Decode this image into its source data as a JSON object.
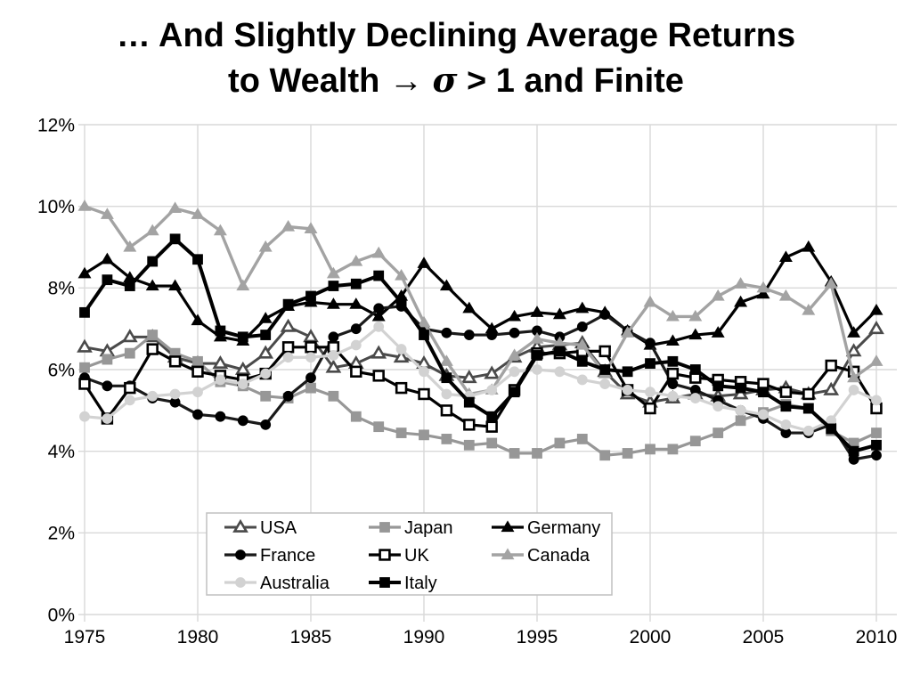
{
  "slide": {
    "title_line1": "… And Slightly Declining Average Returns",
    "title_line2_pre": "to Wealth ",
    "title_line2_arrow": "→",
    "title_line2_mid": " ",
    "title_line2_sigma": "σ",
    "title_line2_post": " > 1 and Finite"
  },
  "chart_data": {
    "type": "line",
    "title": "… And Slightly Declining Average Returns to Wealth → σ > 1 and Finite",
    "xlabel": "",
    "ylabel": "",
    "xlim": [
      1975,
      2010
    ],
    "ylim": [
      0,
      12
    ],
    "grid": true,
    "legend_position": "inside-bottom-left",
    "legend_columns": 3,
    "x_ticks": [
      1975,
      1980,
      1985,
      1990,
      1995,
      2000,
      2005,
      2010
    ],
    "y_ticks": [
      "0%",
      "2%",
      "4%",
      "6%",
      "8%",
      "10%",
      "12%"
    ],
    "y_tick_values": [
      0,
      2,
      4,
      6,
      8,
      10,
      12
    ],
    "x_start_year": 1975,
    "years": [
      1975,
      1976,
      1977,
      1978,
      1979,
      1980,
      1981,
      1982,
      1983,
      1984,
      1985,
      1986,
      1987,
      1988,
      1989,
      1990,
      1991,
      1992,
      1993,
      1994,
      1995,
      1996,
      1997,
      1998,
      1999,
      2000,
      2001,
      2002,
      2003,
      2004,
      2005,
      2006,
      2007,
      2008,
      2009,
      2010
    ],
    "colors": {
      "black": "#000000",
      "dark_gray": "#4a4a4a",
      "medium_gray": "#979797",
      "canada_gray": "#a3a3a3",
      "light_gray": "#d2d2d2",
      "gridline": "#d9d9d9",
      "legend_border": "#c0c0c0"
    },
    "series": [
      {
        "name": "USA",
        "marker": "triangle",
        "open": true,
        "line_color": "#4a4a4a",
        "marker_fill": "#ffffff",
        "marker_stroke": "#4a4a4a",
        "line_width": 3,
        "values": [
          6.55,
          6.45,
          6.8,
          6.8,
          6.3,
          6.15,
          6.15,
          6.0,
          6.4,
          7.05,
          6.8,
          6.05,
          6.15,
          6.4,
          6.3,
          6.15,
          5.85,
          5.8,
          5.9,
          6.3,
          6.55,
          6.6,
          6.65,
          5.95,
          5.4,
          5.2,
          5.3,
          5.4,
          5.35,
          5.4,
          5.5,
          5.55,
          5.4,
          5.5,
          6.45,
          7.0
        ]
      },
      {
        "name": "Japan",
        "marker": "square",
        "open": false,
        "line_color": "#979797",
        "marker_fill": "#979797",
        "marker_stroke": "#979797",
        "line_width": 3.2,
        "values": [
          6.05,
          6.25,
          6.4,
          6.85,
          6.4,
          6.2,
          5.7,
          5.6,
          5.35,
          5.3,
          5.55,
          5.35,
          4.85,
          4.6,
          4.45,
          4.4,
          4.3,
          4.15,
          4.2,
          3.95,
          3.95,
          4.2,
          4.3,
          3.9,
          3.95,
          4.05,
          4.05,
          4.25,
          4.45,
          4.75,
          4.95,
          5.15,
          5.05,
          4.5,
          4.2,
          4.45
        ]
      },
      {
        "name": "Germany",
        "marker": "triangle",
        "open": false,
        "line_color": "#000000",
        "marker_fill": "#000000",
        "marker_stroke": "#000000",
        "line_width": 3.2,
        "values": [
          8.35,
          8.7,
          8.25,
          8.05,
          8.05,
          7.2,
          6.8,
          6.7,
          7.25,
          7.55,
          7.65,
          7.6,
          7.6,
          7.3,
          7.8,
          8.6,
          8.05,
          7.5,
          7.0,
          7.3,
          7.4,
          7.35,
          7.5,
          7.4,
          6.95,
          6.6,
          6.7,
          6.85,
          6.9,
          7.65,
          7.85,
          8.75,
          9.0,
          8.15,
          6.9,
          7.45
        ]
      },
      {
        "name": "France",
        "marker": "circle",
        "open": false,
        "line_color": "#1a1a1a",
        "marker_fill": "#000000",
        "marker_stroke": "#000000",
        "line_width": 3.2,
        "values": [
          5.8,
          5.6,
          5.6,
          5.3,
          5.2,
          4.9,
          4.85,
          4.75,
          4.65,
          5.35,
          5.8,
          6.8,
          7.0,
          7.5,
          7.55,
          7.0,
          6.9,
          6.85,
          6.85,
          6.9,
          6.95,
          6.8,
          7.05,
          7.35,
          6.95,
          6.65,
          5.65,
          5.5,
          5.25,
          5.0,
          4.8,
          4.45,
          4.45,
          4.65,
          3.8,
          3.9
        ]
      },
      {
        "name": "UK",
        "marker": "square",
        "open": true,
        "line_color": "#000000",
        "marker_fill": "#ffffff",
        "marker_stroke": "#000000",
        "line_width": 3.2,
        "values": [
          5.65,
          4.8,
          5.55,
          6.5,
          6.2,
          5.95,
          5.85,
          5.75,
          5.9,
          6.55,
          6.55,
          6.55,
          5.95,
          5.85,
          5.55,
          5.4,
          5.0,
          4.65,
          4.6,
          5.5,
          6.4,
          6.4,
          6.45,
          6.45,
          5.5,
          5.05,
          5.9,
          5.8,
          5.75,
          5.7,
          5.65,
          5.45,
          5.4,
          6.1,
          5.95,
          5.05
        ]
      },
      {
        "name": "Canada",
        "marker": "triangle",
        "open": false,
        "line_color": "#a3a3a3",
        "marker_fill": "#a3a3a3",
        "marker_stroke": "#a3a3a3",
        "line_width": 3.4,
        "values": [
          10.0,
          9.8,
          9.0,
          9.4,
          9.95,
          9.8,
          9.4,
          8.05,
          9.0,
          9.5,
          9.45,
          8.35,
          8.65,
          8.85,
          8.3,
          7.15,
          6.2,
          5.4,
          5.5,
          6.35,
          6.75,
          6.65,
          6.6,
          5.9,
          6.9,
          7.65,
          7.3,
          7.3,
          7.8,
          8.1,
          8.0,
          7.8,
          7.45,
          8.1,
          5.8,
          6.2
        ]
      },
      {
        "name": "Australia",
        "marker": "circle",
        "open": false,
        "line_color": "#d2d2d2",
        "marker_fill": "#d2d2d2",
        "marker_stroke": "#d2d2d2",
        "line_width": 3.2,
        "values": [
          4.85,
          4.8,
          5.25,
          5.35,
          5.4,
          5.45,
          5.75,
          5.65,
          5.9,
          6.3,
          6.3,
          6.35,
          6.6,
          7.05,
          6.5,
          5.95,
          5.4,
          5.35,
          5.5,
          5.95,
          6.0,
          5.95,
          5.75,
          5.65,
          5.5,
          5.45,
          5.35,
          5.3,
          5.1,
          5.0,
          4.9,
          4.65,
          4.5,
          4.75,
          5.5,
          5.25
        ]
      },
      {
        "name": "Italy",
        "marker": "square",
        "open": false,
        "line_color": "#000000",
        "marker_fill": "#000000",
        "marker_stroke": "#000000",
        "line_width": 4,
        "values": [
          7.4,
          8.2,
          8.05,
          8.65,
          9.2,
          8.7,
          6.95,
          6.8,
          6.85,
          7.6,
          7.8,
          8.05,
          8.1,
          8.3,
          7.65,
          6.85,
          5.8,
          5.2,
          4.85,
          5.45,
          6.35,
          6.45,
          6.2,
          6.0,
          5.95,
          6.15,
          6.2,
          6.0,
          5.6,
          5.55,
          5.45,
          5.1,
          5.05,
          4.55,
          4.0,
          4.15
        ]
      }
    ]
  }
}
